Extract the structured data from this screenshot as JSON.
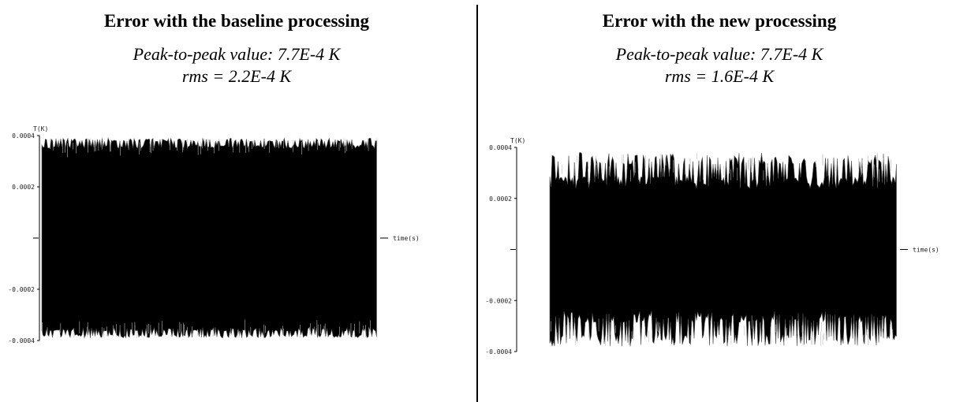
{
  "chart_data": [
    {
      "type": "line",
      "title": "Error with the baseline processing",
      "subtitle_lines": [
        "Peak-to-peak value: 7.7E-4 K",
        "rms = 2.2E-4 K"
      ],
      "ylabel": "T(K)",
      "xlabel": "time(s)",
      "ylim": [
        -0.0004,
        0.0004
      ],
      "yticks": [
        "0.0004",
        "0.0002",
        "-0.0002",
        "-0.0004"
      ],
      "series": [
        {
          "values": {
            "upper_envelope_mean": 0.00037,
            "lower_envelope_mean": -0.00037,
            "spike_amplitude": 2e-05,
            "peak_to_peak": 0.00077,
            "rms": 0.00022
          }
        }
      ]
    },
    {
      "type": "line",
      "title": "Error with the new processing",
      "subtitle_lines": [
        "Peak-to-peak value: 7.7E-4 K",
        "rms = 1.6E-4 K"
      ],
      "ylabel": "T(K)",
      "xlabel": "time(s)",
      "ylim": [
        -0.0004,
        0.0004
      ],
      "yticks": [
        "0.0004",
        "0.0002",
        "-0.0002",
        "-0.0004"
      ],
      "series": [
        {
          "values": {
            "upper_envelope_mean": 0.00031,
            "lower_envelope_mean": -0.00031,
            "spike_amplitude": 7e-05,
            "peak_to_peak": 0.00077,
            "rms": 0.00016
          }
        }
      ]
    }
  ],
  "colors": {
    "trace": "#000000",
    "spike": "#555555",
    "axis": "#000000"
  }
}
